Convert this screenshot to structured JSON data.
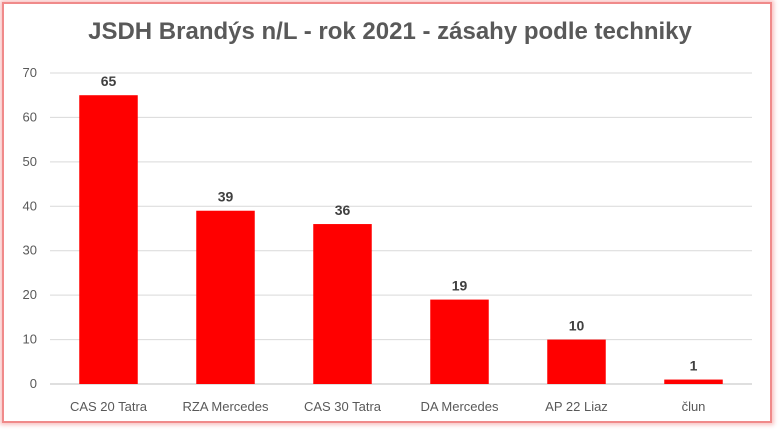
{
  "chart_data": {
    "type": "bar",
    "title": "JSDH Brandýs n/L - rok 2021 - zásahy podle techniky",
    "xlabel": "",
    "ylabel": "",
    "categories": [
      "CAS 20 Tatra",
      "RZA Mercedes",
      "CAS 30 Tatra",
      "DA Mercedes",
      "AP 22 Liaz",
      "člun"
    ],
    "values": [
      65,
      39,
      36,
      19,
      10,
      1
    ],
    "ylim": [
      0,
      70
    ],
    "yticks": [
      "0",
      "10",
      "20",
      "30",
      "40",
      "50",
      "60",
      "70"
    ],
    "grid": true,
    "legend": "none",
    "data_labels": true,
    "bar_color": "#ff0000",
    "frame_color": "#f08a8a"
  }
}
